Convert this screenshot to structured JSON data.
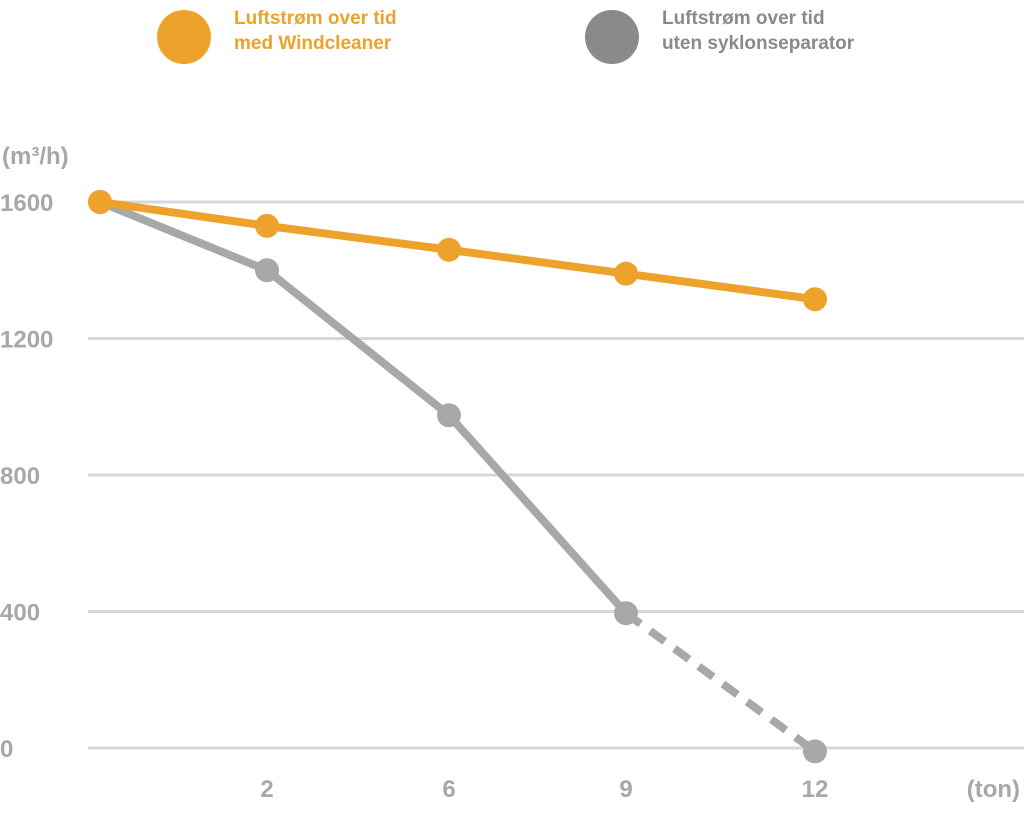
{
  "legend": [
    {
      "line1": "Luftstrøm over tid",
      "line2": "med Windcleaner",
      "color": "#eca22b"
    },
    {
      "line1": "Luftstrøm over tid",
      "line2": "uten syklonseparator",
      "color": "#8a8a8a"
    }
  ],
  "chart_data": {
    "type": "line",
    "ylabel": "(m³/h)",
    "xlabel": "(ton)",
    "ylim": [
      0,
      1600
    ],
    "yticks": [
      0,
      400,
      800,
      1200,
      1600
    ],
    "x_tick_labels": [
      "2",
      "6",
      "9",
      "12"
    ],
    "x": [
      0,
      2,
      6,
      9,
      12
    ],
    "grid": true,
    "legend_position": "top",
    "series": [
      {
        "name": "Luftstrøm over tid med Windcleaner",
        "values": [
          1600,
          1530,
          1460,
          1390,
          1315
        ],
        "color": "#eca22b",
        "style": "solid"
      },
      {
        "name": "Luftstrøm over tid uten syklonseparator",
        "values": [
          1600,
          1400,
          975,
          395,
          -10
        ],
        "color": "#a8a8aa",
        "marker_color": "#a8a8aa",
        "style": "solid",
        "dashed_last_segment": true
      }
    ]
  }
}
